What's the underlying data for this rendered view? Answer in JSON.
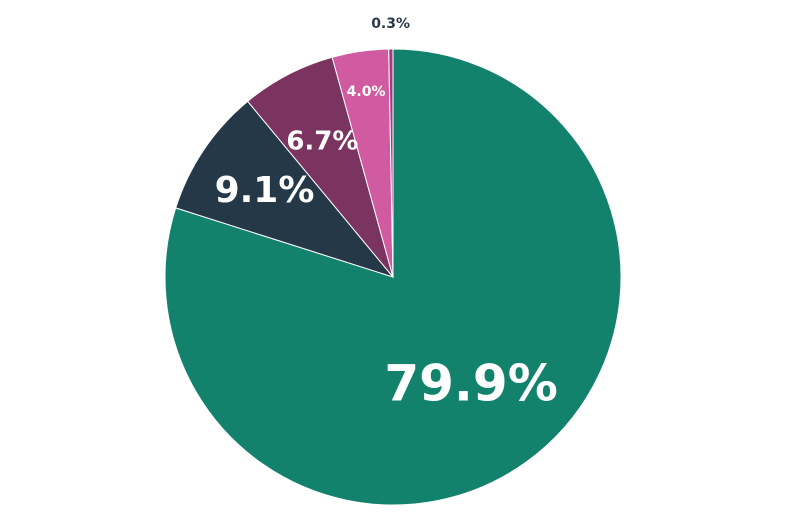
{
  "chart_data": {
    "type": "pie",
    "title": "",
    "slices": [
      {
        "value": 79.9,
        "label": "79.9%",
        "color": "#13826c"
      },
      {
        "value": 9.1,
        "label": "9.1%",
        "color": "#243847"
      },
      {
        "value": 6.7,
        "label": "6.7%",
        "color": "#7b3360"
      },
      {
        "value": 4.0,
        "label": "4.0%",
        "color": "#d05ba1"
      },
      {
        "value": 0.3,
        "label": "0.3%",
        "color": "#9c3f85"
      }
    ],
    "start_angle_deg": 0,
    "direction": "clockwise"
  }
}
